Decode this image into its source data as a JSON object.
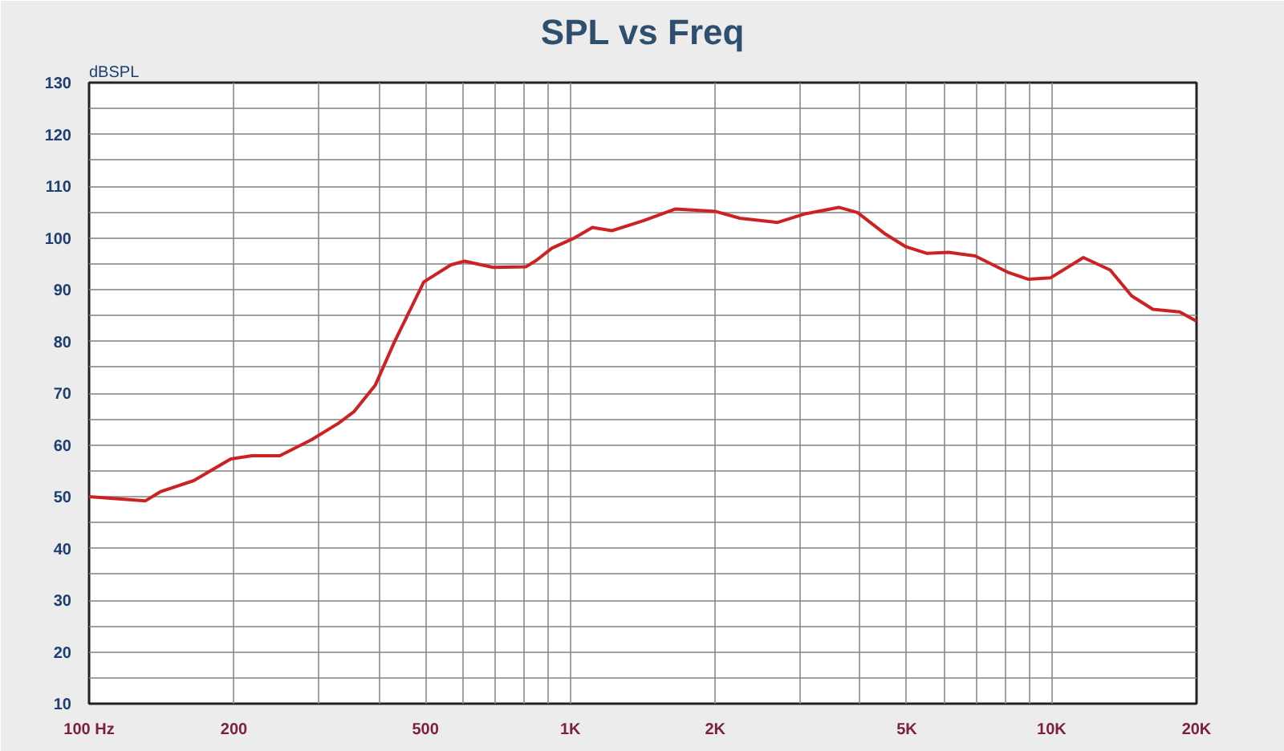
{
  "chart_data": {
    "type": "line",
    "title": "SPL vs Freq",
    "ylabel": "dBSPL",
    "log": "x",
    "grid": true,
    "line_style": "solid",
    "xlim": [
      100,
      20000
    ],
    "ylim": [
      10,
      130
    ],
    "xticks": [
      {
        "value": 100,
        "label": "100 Hz"
      },
      {
        "value": 200,
        "label": "200"
      },
      {
        "value": 300,
        "label": null
      },
      {
        "value": 400,
        "label": null
      },
      {
        "value": 500,
        "label": "500"
      },
      {
        "value": 600,
        "label": null
      },
      {
        "value": 700,
        "label": null
      },
      {
        "value": 800,
        "label": null
      },
      {
        "value": 900,
        "label": null
      },
      {
        "value": 1000,
        "label": "1K"
      },
      {
        "value": 2000,
        "label": "2K"
      },
      {
        "value": 3000,
        "label": null
      },
      {
        "value": 4000,
        "label": null
      },
      {
        "value": 5000,
        "label": "5K"
      },
      {
        "value": 6000,
        "label": null
      },
      {
        "value": 7000,
        "label": null
      },
      {
        "value": 8000,
        "label": null
      },
      {
        "value": 9000,
        "label": null
      },
      {
        "value": 10000,
        "label": "10K"
      },
      {
        "value": 20000,
        "label": "20K"
      }
    ],
    "yticks": [
      10,
      {
        "value": 15,
        "label": null
      },
      20,
      {
        "value": 25,
        "label": null
      },
      30,
      {
        "value": 35,
        "label": null
      },
      40,
      {
        "value": 45,
        "label": null
      },
      50,
      {
        "value": 55,
        "label": null
      },
      60,
      {
        "value": 65,
        "label": null
      },
      70,
      {
        "value": 75,
        "label": null
      },
      80,
      {
        "value": 85,
        "label": null
      },
      90,
      {
        "value": 95,
        "label": null
      },
      100,
      {
        "value": 105,
        "label": null
      },
      110,
      {
        "value": 115,
        "label": null
      },
      120,
      {
        "value": 125,
        "label": null
      },
      130
    ],
    "x": [
      100,
      131,
      141,
      165,
      197,
      218,
      249,
      290,
      330,
      355,
      393,
      431,
      496,
      565,
      603,
      691,
      808,
      851,
      915,
      1015,
      1111,
      1220,
      1417,
      1654,
      2006,
      2251,
      2697,
      3058,
      3613,
      3950,
      4488,
      4976,
      5510,
      6105,
      6935,
      8090,
      8950,
      9956,
      11638,
      13230,
      14660,
      16230,
      18450,
      20000
    ],
    "series": [
      {
        "color": "#cc2222",
        "values": [
          50,
          49.2,
          51,
          53.1,
          57.3,
          57.9,
          57.9,
          61,
          64.2,
          66.4,
          71.5,
          79.9,
          91.5,
          94.8,
          95.5,
          94.3,
          94.4,
          95.7,
          98,
          99.9,
          102,
          101.4,
          103.3,
          105.6,
          105.1,
          103.8,
          103,
          104.6,
          105.9,
          104.9,
          100.9,
          98.3,
          97,
          97.2,
          96.5,
          93.4,
          92,
          92.3,
          96.2,
          93.8,
          88.8,
          86.2,
          85.7,
          83.9
        ]
      }
    ]
  }
}
